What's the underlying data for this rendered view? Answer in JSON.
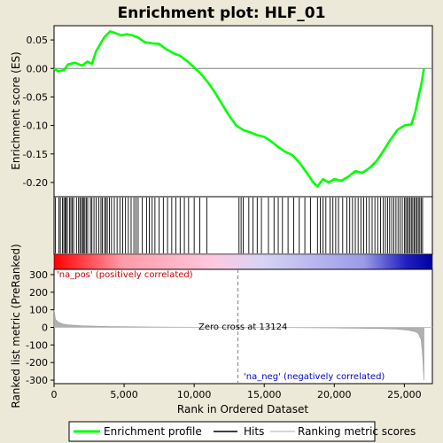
{
  "chart_data": {
    "type": "line",
    "title": "Enrichment plot: HLF_01",
    "xlabel": "Rank in Ordered Dataset",
    "x_ticks": [
      "0",
      "5,000",
      "10,000",
      "15,000",
      "20,000",
      "25,000"
    ],
    "x_tick_values": [
      0,
      5000,
      10000,
      15000,
      20000,
      25000
    ],
    "xlim": [
      0,
      27000
    ],
    "top_panel": {
      "ylabel": "Enrichment score (ES)",
      "ylim": [
        -0.225,
        0.075
      ],
      "y_ticks": [
        "0.05",
        "0.00",
        "-0.05",
        "-0.10",
        "-0.15",
        "-0.20"
      ],
      "y_tick_values": [
        0.05,
        0.0,
        -0.05,
        -0.1,
        -0.15,
        -0.2
      ],
      "series": [
        {
          "name": "Enrichment profile",
          "color": "#00ff00",
          "x": [
            0,
            300,
            700,
            1000,
            1500,
            2000,
            2400,
            2700,
            3000,
            3300,
            3600,
            4000,
            4400,
            4800,
            5200,
            5600,
            6000,
            6500,
            7000,
            7500,
            8000,
            8500,
            9000,
            9500,
            10000,
            10500,
            11000,
            11500,
            12000,
            12500,
            13000,
            13500,
            14000,
            14500,
            15000,
            15500,
            16000,
            16500,
            17000,
            17500,
            18000,
            18500,
            18800,
            19200,
            19600,
            20000,
            20500,
            21000,
            21500,
            22000,
            22500,
            23000,
            23500,
            24000,
            24500,
            25000,
            25500,
            25800,
            26000,
            26200,
            26400
          ],
          "y": [
            0.0,
            -0.005,
            -0.003,
            0.007,
            0.01,
            0.005,
            0.012,
            0.008,
            0.03,
            0.043,
            0.055,
            0.065,
            0.062,
            0.058,
            0.06,
            0.058,
            0.054,
            0.046,
            0.044,
            0.043,
            0.034,
            0.027,
            0.022,
            0.013,
            0.002,
            -0.01,
            -0.025,
            -0.043,
            -0.063,
            -0.083,
            -0.1,
            -0.108,
            -0.112,
            -0.117,
            -0.12,
            -0.128,
            -0.138,
            -0.146,
            -0.152,
            -0.165,
            -0.182,
            -0.2,
            -0.207,
            -0.194,
            -0.2,
            -0.194,
            -0.197,
            -0.19,
            -0.18,
            -0.183,
            -0.175,
            -0.163,
            -0.145,
            -0.125,
            -0.108,
            -0.1,
            -0.098,
            -0.075,
            -0.05,
            -0.03,
            0.0
          ]
        }
      ]
    },
    "hits_panel": {
      "legend_name": "Hits",
      "hit_positions": [
        100,
        350,
        450,
        600,
        700,
        800,
        850,
        950,
        1100,
        1200,
        1300,
        1400,
        1600,
        1750,
        1850,
        1950,
        2050,
        2100,
        2200,
        2300,
        2400,
        2600,
        2700,
        2850,
        3000,
        3200,
        3350,
        3450,
        3600,
        3700,
        3800,
        3950,
        4100,
        4300,
        4500,
        4700,
        4900,
        5100,
        5300,
        5500,
        5700,
        5850,
        6000,
        6300,
        6600,
        6800,
        7000,
        7200,
        7500,
        7800,
        8100,
        8400,
        8700,
        9000,
        9300,
        9600,
        10000,
        10400,
        10900,
        13200,
        13350,
        13500,
        13900,
        14200,
        14500,
        14800,
        15300,
        15700,
        16000,
        16300,
        16700,
        17100,
        17500,
        17900,
        18300,
        18800,
        19000,
        19200,
        19400,
        19700,
        19900,
        20100,
        20300,
        20600,
        20900,
        21100,
        21300,
        21500,
        21700,
        21900,
        22100,
        22300,
        22500,
        22700,
        22900,
        23100,
        23300,
        23500,
        23650,
        23800,
        23950,
        24100,
        24250,
        24400,
        24550,
        24700,
        24850,
        25000,
        25100,
        25200,
        25300,
        25400,
        25500,
        25600,
        25700,
        25800,
        25900,
        26000,
        26100,
        26200,
        26300
      ]
    },
    "metric_panel": {
      "ylabel": "Ranked list metric (PreRanked)",
      "legend_name": "Ranking metric scores",
      "ylim": [
        -320,
        330
      ],
      "y_ticks": [
        "300",
        "200",
        "100",
        "0",
        "-100",
        "-200",
        "-300"
      ],
      "y_tick_values": [
        300,
        200,
        100,
        0,
        -100,
        -200,
        -300
      ],
      "pos_label": "'na_pos' (positively correlated)",
      "neg_label": "'na_neg' (negatively correlated)",
      "zero_cross_label": "Zero cross at 13124",
      "zero_cross": 13124,
      "metric_x": [
        0,
        100,
        300,
        600,
        1000,
        2000,
        4000,
        7000,
        10000,
        13124,
        16000,
        20000,
        23000,
        24500,
        25300,
        25800,
        26000,
        26200,
        26300,
        26400
      ],
      "metric_y": [
        100,
        45,
        30,
        20,
        14,
        9,
        5,
        2.5,
        1,
        0,
        -1,
        -3,
        -6,
        -10,
        -16,
        -25,
        -35,
        -70,
        -150,
        -300
      ]
    },
    "legend": {
      "placement": "bottom",
      "items": [
        "Enrichment profile",
        "Hits",
        "Ranking metric scores"
      ]
    },
    "colors": {
      "enrichment": "#00ff00",
      "hits": "#000000",
      "metric": "#b0b0b0",
      "pos_label": "#cc0000",
      "neg_label": "#0000cc",
      "zero_line": "#808080"
    },
    "rank_colorbar": {
      "stops": [
        "#ff0000",
        "#ff9aa8",
        "#ffc8e0",
        "#d8d4f5",
        "#9a9ae8",
        "#2020c0",
        "#0000a0"
      ]
    }
  }
}
